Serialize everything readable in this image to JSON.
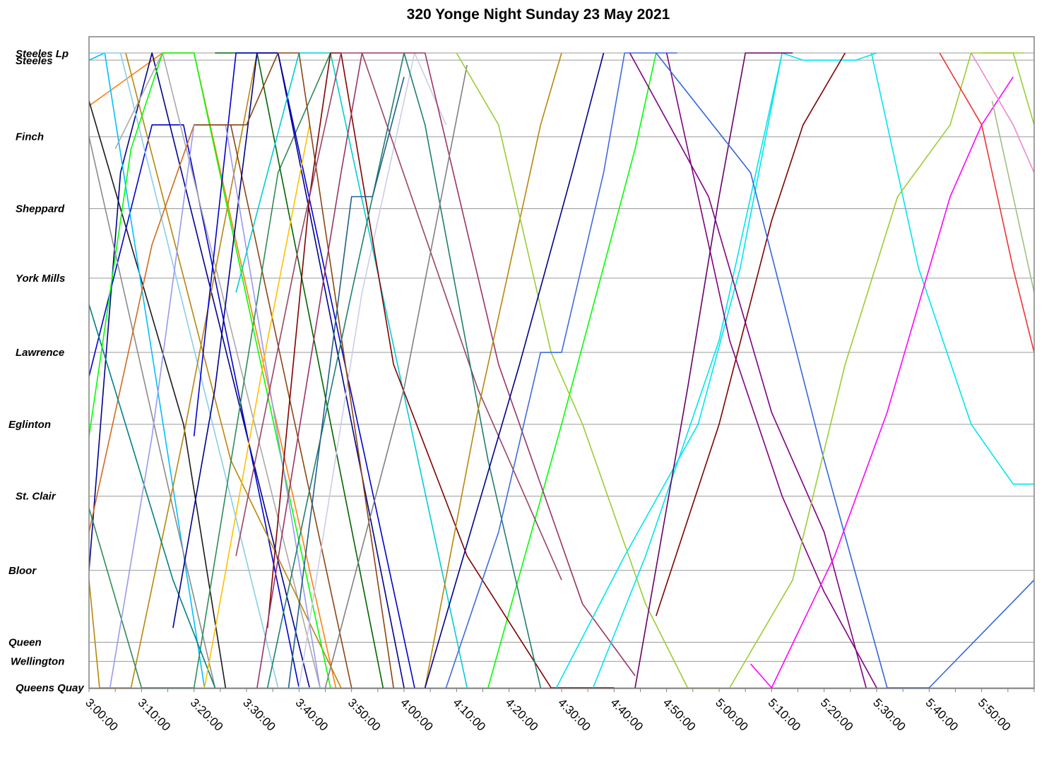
{
  "chart_data": {
    "type": "line",
    "title": "320 Yonge Night Sunday 23 May 2021",
    "xlabel": "",
    "ylabel": "",
    "x_axis": {
      "unit": "time of day",
      "min": "3:00:00",
      "max": "6:00:00",
      "tick_labels": [
        "3:00:00",
        "3:10:00",
        "3:20:00",
        "3:30:00",
        "3:40:00",
        "3:50:00",
        "4:00:00",
        "4:10:00",
        "4:20:00",
        "4:30:00",
        "4:40:00",
        "4:50:00",
        "5:00:00",
        "5:10:00",
        "5:20:00",
        "5:30:00",
        "5:40:00",
        "5:50:00"
      ]
    },
    "stops": [
      {
        "name": "Steeles Lp",
        "pos": 0
      },
      {
        "name": "Steeles",
        "pos": 0.3
      },
      {
        "name": "Finch",
        "pos": 3.5
      },
      {
        "name": "Sheppard",
        "pos": 6.5
      },
      {
        "name": "York Mills",
        "pos": 9.4
      },
      {
        "name": "Lawrence",
        "pos": 12.5
      },
      {
        "name": "Eglinton",
        "pos": 15.5
      },
      {
        "name": "St. Clair",
        "pos": 18.5
      },
      {
        "name": "Bloor",
        "pos": 21.6
      },
      {
        "name": "Queen",
        "pos": 24.6
      },
      {
        "name": "Wellington",
        "pos": 25.4
      },
      {
        "name": "Queens Quay",
        "pos": 26.5
      }
    ],
    "grid": true,
    "legend": "none",
    "series": [
      {
        "color": "#ff7f0e",
        "points": [
          [
            "2:55:00",
            3.0
          ],
          [
            "3:14:00",
            0.0
          ],
          [
            "3:20:00",
            0.0
          ],
          [
            "3:47:00",
            26.5
          ]
        ]
      },
      {
        "color": "#1a1a1a",
        "points": [
          [
            "3:00:00",
            2.0
          ],
          [
            "3:18:00",
            15.5
          ],
          [
            "3:26:00",
            26.5
          ]
        ]
      },
      {
        "color": "#00008b",
        "points": [
          [
            "3:00:00",
            21.6
          ],
          [
            "3:06:00",
            5.0
          ],
          [
            "3:12:00",
            0.0
          ],
          [
            "3:42:00",
            26.5
          ]
        ]
      },
      {
        "color": "#0000cd",
        "points": [
          [
            "3:00:00",
            13.5
          ],
          [
            "3:12:00",
            3.0
          ],
          [
            "3:18:00",
            3.0
          ],
          [
            "3:40:00",
            26.5
          ]
        ]
      },
      {
        "color": "#00bfff",
        "points": [
          [
            "2:58:00",
            0.5
          ],
          [
            "3:03:00",
            0.0
          ],
          [
            "3:22:00",
            26.5
          ]
        ]
      },
      {
        "color": "#87ceeb",
        "points": [
          [
            "3:00:00",
            0.0
          ],
          [
            "3:06:00",
            0.0
          ],
          [
            "3:36:00",
            26.5
          ],
          [
            "3:46:00",
            26.5
          ]
        ]
      },
      {
        "color": "#8b8b8b",
        "points": [
          [
            "3:00:00",
            3.5
          ],
          [
            "3:16:00",
            19.0
          ],
          [
            "3:24:00",
            26.5
          ]
        ]
      },
      {
        "color": "#a9a9a9",
        "points": [
          [
            "3:05:00",
            4.0
          ],
          [
            "3:14:00",
            0.0
          ],
          [
            "3:44:00",
            26.5
          ]
        ]
      },
      {
        "color": "#b8860b",
        "points": [
          [
            "3:00:00",
            22.0
          ],
          [
            "3:02:00",
            26.5
          ],
          [
            "3:08:00",
            26.5
          ],
          [
            "3:18:00",
            16.0
          ],
          [
            "3:32:00",
            0.0
          ]
        ]
      },
      {
        "color": "#b8860b",
        "points": [
          [
            "3:07:00",
            0.0
          ],
          [
            "3:27:00",
            17.0
          ],
          [
            "3:48:00",
            26.5
          ]
        ]
      },
      {
        "color": "#d2691e",
        "points": [
          [
            "3:00:00",
            20.0
          ],
          [
            "3:12:00",
            8.0
          ],
          [
            "3:20:00",
            3.0
          ],
          [
            "3:28:00",
            3.0
          ]
        ]
      },
      {
        "color": "#8b4513",
        "points": [
          [
            "3:27:00",
            3.0
          ],
          [
            "3:50:00",
            26.5
          ]
        ]
      },
      {
        "color": "#2e8b57",
        "points": [
          [
            "3:00:00",
            19.0
          ],
          [
            "3:10:00",
            26.5
          ],
          [
            "3:20:00",
            26.5
          ],
          [
            "3:36:00",
            5.0
          ],
          [
            "3:46:00",
            0.0
          ]
        ]
      },
      {
        "color": "#008080",
        "points": [
          [
            "3:00:00",
            10.5
          ],
          [
            "3:16:00",
            22.0
          ],
          [
            "3:24:00",
            26.5
          ]
        ]
      },
      {
        "color": "#00ff00",
        "points": [
          [
            "3:00:00",
            16.0
          ],
          [
            "3:08:00",
            4.0
          ],
          [
            "3:14:00",
            0.0
          ],
          [
            "3:20:00",
            0.0
          ],
          [
            "3:46:00",
            26.5
          ]
        ]
      },
      {
        "color": "#00ff00",
        "points": [
          [
            "4:16:00",
            26.5
          ],
          [
            "4:30:00",
            15.5
          ],
          [
            "4:44:00",
            4.0
          ],
          [
            "4:48:00",
            0.0
          ]
        ]
      },
      {
        "color": "#006400",
        "points": [
          [
            "3:24:00",
            0.0
          ],
          [
            "3:32:00",
            0.0
          ],
          [
            "3:56:00",
            26.5
          ]
        ]
      },
      {
        "color": "#0000cd",
        "points": [
          [
            "3:20:00",
            16.0
          ],
          [
            "3:28:00",
            0.0
          ],
          [
            "3:36:00",
            0.0
          ],
          [
            "4:02:00",
            26.5
          ]
        ]
      },
      {
        "color": "#00008b",
        "points": [
          [
            "3:16:00",
            24.0
          ],
          [
            "3:24:00",
            14.0
          ],
          [
            "3:32:00",
            0.0
          ],
          [
            "3:36:00",
            0.0
          ],
          [
            "4:00:00",
            26.5
          ]
        ]
      },
      {
        "color": "#9999ee",
        "points": [
          [
            "3:04:00",
            26.5
          ],
          [
            "3:12:00",
            16.0
          ],
          [
            "3:20:00",
            3.0
          ],
          [
            "3:26:00",
            3.0
          ],
          [
            "3:44:00",
            26.5
          ]
        ]
      },
      {
        "color": "#cccce8",
        "points": [
          [
            "3:40:00",
            26.5
          ],
          [
            "3:52:00",
            10.0
          ],
          [
            "4:02:00",
            0.0
          ],
          [
            "4:08:00",
            3.0
          ]
        ]
      },
      {
        "color": "#00ced1",
        "points": [
          [
            "3:28:00",
            10.0
          ],
          [
            "3:40:00",
            0.0
          ],
          [
            "3:46:00",
            0.0
          ],
          [
            "4:12:00",
            26.5
          ]
        ]
      },
      {
        "color": "#ffc000",
        "points": [
          [
            "3:22:00",
            26.5
          ],
          [
            "3:34:00",
            12.0
          ],
          [
            "3:42:00",
            3.0
          ]
        ]
      },
      {
        "color": "#8b4513",
        "points": [
          [
            "3:20:00",
            3.0
          ],
          [
            "3:30:00",
            3.0
          ],
          [
            "3:36:00",
            0.0
          ],
          [
            "3:40:00",
            0.0
          ],
          [
            "3:58:00",
            26.5
          ]
        ]
      },
      {
        "color": "#800000",
        "points": [
          [
            "3:34:00",
            24.0
          ],
          [
            "3:42:00",
            6.0
          ],
          [
            "3:46:00",
            0.0
          ],
          [
            "3:48:00",
            0.0
          ],
          [
            "3:58:00",
            13.0
          ],
          [
            "4:12:00",
            21.0
          ],
          [
            "4:28:00",
            26.5
          ],
          [
            "4:40:00",
            26.5
          ]
        ]
      },
      {
        "color": "#993366",
        "points": [
          [
            "3:32:00",
            26.5
          ],
          [
            "3:48:00",
            5.0
          ],
          [
            "3:52:00",
            0.0
          ],
          [
            "4:04:00",
            0.0
          ],
          [
            "4:18:00",
            13.0
          ],
          [
            "4:34:00",
            23.0
          ],
          [
            "4:44:00",
            26.0
          ]
        ]
      },
      {
        "color": "#994466",
        "points": [
          [
            "3:28:00",
            21.0
          ],
          [
            "3:40:00",
            8.0
          ],
          [
            "3:48:00",
            0.0
          ],
          [
            "3:52:00",
            0.0
          ],
          [
            "4:14:00",
            14.0
          ],
          [
            "4:30:00",
            22.0
          ]
        ]
      },
      {
        "color": "#1e7f6e",
        "points": [
          [
            "3:34:00",
            26.5
          ],
          [
            "3:50:00",
            10.0
          ],
          [
            "4:00:00",
            0.0
          ],
          [
            "4:04:00",
            3.0
          ],
          [
            "4:16:00",
            17.0
          ],
          [
            "4:26:00",
            26.5
          ]
        ]
      },
      {
        "color": "#808080",
        "points": [
          [
            "3:45:00",
            26.5
          ],
          [
            "4:00:00",
            14.0
          ],
          [
            "4:12:00",
            0.5
          ]
        ]
      },
      {
        "color": "#1f5f8b",
        "points": [
          [
            "3:38:00",
            26.5
          ],
          [
            "3:50:00",
            6.0
          ],
          [
            "3:54:00",
            6.0
          ],
          [
            "4:00:00",
            1.0
          ]
        ]
      },
      {
        "color": "#b8860b",
        "points": [
          [
            "4:04:00",
            26.5
          ],
          [
            "4:14:00",
            15.0
          ],
          [
            "4:26:00",
            3.0
          ],
          [
            "4:30:00",
            0.0
          ]
        ]
      },
      {
        "color": "#9acd32",
        "points": [
          [
            "4:10:00",
            0.0
          ],
          [
            "4:18:00",
            3.0
          ],
          [
            "4:28:00",
            12.5
          ],
          [
            "4:34:00",
            15.5
          ],
          [
            "4:46:00",
            23.0
          ],
          [
            "4:54:00",
            26.5
          ],
          [
            "5:00:00",
            26.5
          ]
        ]
      },
      {
        "color": "#4169e1",
        "points": [
          [
            "4:08:00",
            26.5
          ],
          [
            "4:18:00",
            20.0
          ],
          [
            "4:26:00",
            12.5
          ],
          [
            "4:30:00",
            12.5
          ],
          [
            "4:38:00",
            5.0
          ],
          [
            "4:42:00",
            0.0
          ],
          [
            "4:52:00",
            0.0
          ]
        ]
      },
      {
        "color": "#00008b",
        "points": [
          [
            "4:04:00",
            26.5
          ],
          [
            "4:22:00",
            13.0
          ],
          [
            "4:32:00",
            5.0
          ],
          [
            "4:38:00",
            0.0
          ]
        ]
      },
      {
        "color": "#00e5ee",
        "points": [
          [
            "4:29:00",
            26.5
          ],
          [
            "4:42:00",
            21.0
          ],
          [
            "4:56:00",
            15.5
          ],
          [
            "5:04:00",
            9.0
          ],
          [
            "5:12:00",
            0.0
          ],
          [
            "5:16:00",
            0.3
          ],
          [
            "5:26:00",
            0.3
          ],
          [
            "5:30:00",
            0.0
          ]
        ]
      },
      {
        "color": "#00e5ee",
        "points": [
          [
            "4:36:00",
            26.5
          ],
          [
            "4:46:00",
            21.0
          ],
          [
            "5:00:00",
            12.0
          ],
          [
            "5:08:00",
            4.0
          ],
          [
            "5:12:00",
            0.0
          ]
        ]
      },
      {
        "color": "#00e5ee",
        "points": [
          [
            "5:29:00",
            0.0
          ],
          [
            "5:38:00",
            9.0
          ],
          [
            "5:48:00",
            15.5
          ],
          [
            "5:56:00",
            18.0
          ],
          [
            "6:00:00",
            18.0
          ]
        ]
      },
      {
        "color": "#800080",
        "points": [
          [
            "4:50:00",
            0.0
          ],
          [
            "5:02:00",
            12.0
          ],
          [
            "5:12:00",
            18.5
          ],
          [
            "5:20:00",
            22.5
          ],
          [
            "5:30:00",
            26.5
          ]
        ]
      },
      {
        "color": "#800080",
        "points": [
          [
            "4:43:00",
            0.0
          ],
          [
            "4:58:00",
            6.0
          ],
          [
            "5:10:00",
            15.0
          ],
          [
            "5:20:00",
            20.0
          ],
          [
            "5:28:00",
            26.5
          ]
        ]
      },
      {
        "color": "#660066",
        "points": [
          [
            "4:44:00",
            26.5
          ],
          [
            "4:54:00",
            14.0
          ],
          [
            "5:00:00",
            6.0
          ],
          [
            "5:05:00",
            0.0
          ],
          [
            "5:14:00",
            0.0
          ]
        ]
      },
      {
        "color": "#800000",
        "points": [
          [
            "4:48:00",
            23.5
          ],
          [
            "5:00:00",
            15.5
          ],
          [
            "5:10:00",
            7.0
          ],
          [
            "5:16:00",
            3.0
          ],
          [
            "5:24:00",
            0.0
          ]
        ]
      },
      {
        "color": "#3366dd",
        "points": [
          [
            "4:48:00",
            0.0
          ],
          [
            "5:06:00",
            5.0
          ],
          [
            "5:20:00",
            17.0
          ],
          [
            "5:32:00",
            26.5
          ],
          [
            "5:40:00",
            26.5
          ],
          [
            "6:00:00",
            22.0
          ]
        ]
      },
      {
        "color": "#9acd32",
        "points": [
          [
            "5:02:00",
            26.5
          ],
          [
            "5:14:00",
            22.0
          ],
          [
            "5:24:00",
            13.0
          ],
          [
            "5:34:00",
            6.0
          ],
          [
            "5:44:00",
            3.0
          ],
          [
            "5:48:00",
            0.0
          ],
          [
            "5:58:00",
            0.0
          ]
        ]
      },
      {
        "color": "#ff00ff",
        "points": [
          [
            "5:06:00",
            25.5
          ],
          [
            "5:10:00",
            26.5
          ],
          [
            "5:22:00",
            21.0
          ],
          [
            "5:32:00",
            15.0
          ],
          [
            "5:44:00",
            6.0
          ],
          [
            "5:50:00",
            3.0
          ],
          [
            "5:56:00",
            1.0
          ]
        ]
      },
      {
        "color": "#ee3333",
        "points": [
          [
            "5:42:00",
            0.0
          ],
          [
            "5:50:00",
            3.0
          ],
          [
            "5:56:00",
            9.0
          ],
          [
            "6:00:00",
            12.5
          ]
        ]
      },
      {
        "color": "#ee88cc",
        "points": [
          [
            "5:48:00",
            0.0
          ],
          [
            "5:56:00",
            3.0
          ],
          [
            "6:00:00",
            5.0
          ]
        ]
      },
      {
        "color": "#a0c080",
        "points": [
          [
            "5:52:00",
            2.0
          ],
          [
            "6:00:00",
            10.0
          ]
        ]
      },
      {
        "color": "#99cc33",
        "points": [
          [
            "5:50:00",
            0.0
          ],
          [
            "5:56:00",
            0.0
          ],
          [
            "6:00:00",
            3.0
          ]
        ]
      }
    ]
  }
}
